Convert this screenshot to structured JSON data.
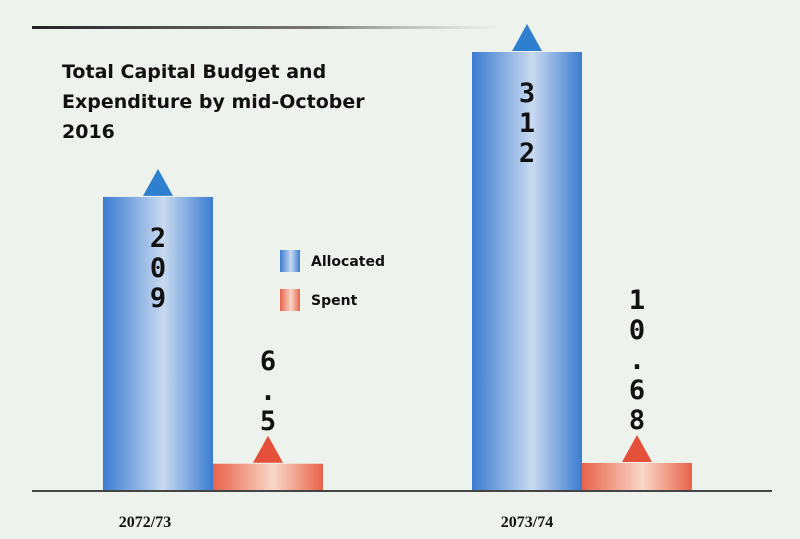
{
  "chart_data": {
    "type": "bar",
    "title_lines": [
      "Total Capital Budget and",
      "Expenditure by mid-October",
      "2016"
    ],
    "categories": [
      "2072/73",
      "2073/74"
    ],
    "series": [
      {
        "name": "Allocated",
        "values": [
          209,
          312
        ],
        "labels": [
          "209",
          "312"
        ],
        "color": "#3a7bd0"
      },
      {
        "name": "Spent",
        "values": [
          6.5,
          10.68
        ],
        "labels": [
          "6.5",
          "10.68"
        ],
        "color": "#e8624a"
      }
    ],
    "ylim": [
      0,
      312
    ],
    "grid": false,
    "legend_position": "center"
  },
  "colors": {
    "background": "#eef2ec",
    "axis": "#444444",
    "allocated_dark": "#3a7bd0",
    "allocated_light": "#c9daf0",
    "spent_dark": "#e8624a",
    "spent_light": "#f8d8c8",
    "arrow_allocated": "#2f7fd1",
    "arrow_spent": "#e4503a"
  }
}
